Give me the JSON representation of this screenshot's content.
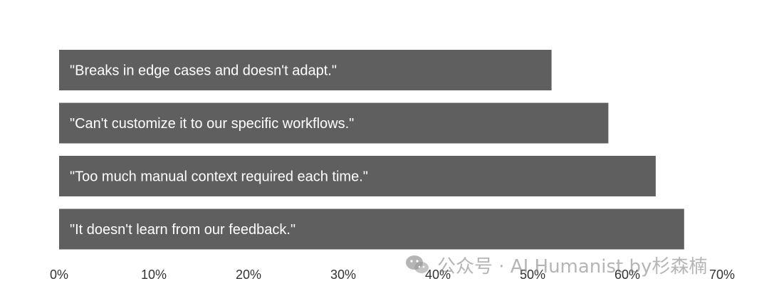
{
  "chart_data": {
    "type": "bar",
    "orientation": "horizontal",
    "categories": [
      "\"Breaks in edge cases and doesn't adapt.\"",
      "\"Can't customize it to our specific workflows.\"",
      "\"Too much manual context required each time.\"",
      "\"It doesn't learn from our feedback.\""
    ],
    "values": [
      52,
      58,
      63,
      66
    ],
    "unit": "%",
    "xlim": [
      0,
      70
    ],
    "xticks": [
      "0%",
      "10%",
      "20%",
      "30%",
      "40%",
      "50%",
      "60%",
      "70%"
    ],
    "title": "",
    "xlabel": "",
    "ylabel": "",
    "grid": false,
    "legend": "none",
    "colors": {
      "bar": "#5f5f5f",
      "bar_text": "#ffffff",
      "tick_text": "#333333"
    }
  },
  "watermark": {
    "text": "公众号 · AI Humanist by杉森楠",
    "icon": "wechat-icon"
  }
}
